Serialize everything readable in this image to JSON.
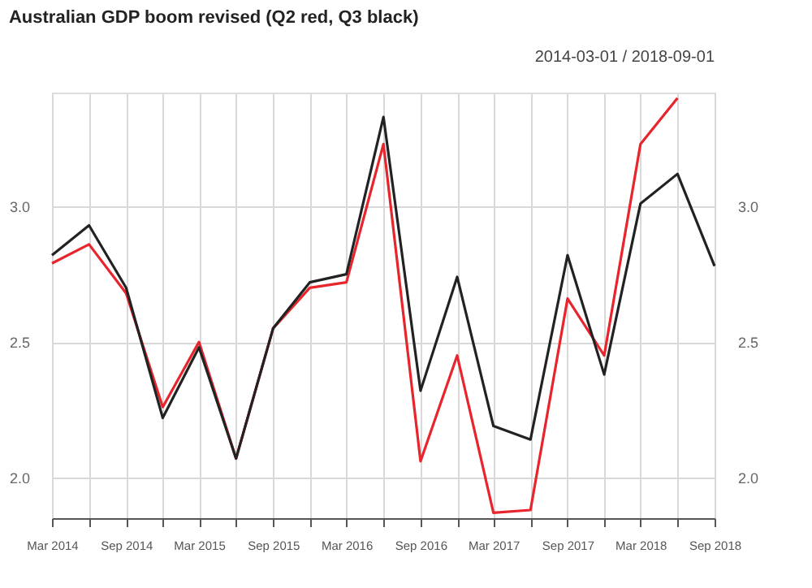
{
  "chart_data": {
    "type": "line",
    "title": "Australian GDP boom revised (Q2 red, Q3 black)",
    "subtitle": "2014-03-01 / 2018-09-01",
    "x": [
      "2014-03",
      "2014-06",
      "2014-09",
      "2014-12",
      "2015-03",
      "2015-06",
      "2015-09",
      "2015-12",
      "2016-03",
      "2016-06",
      "2016-09",
      "2016-12",
      "2017-03",
      "2017-06",
      "2017-09",
      "2017-12",
      "2018-03",
      "2018-06",
      "2018-09"
    ],
    "series": [
      {
        "color": "#e8242c",
        "values": [
          2.79,
          2.86,
          2.68,
          2.26,
          2.5,
          2.07,
          2.55,
          2.7,
          2.72,
          3.23,
          2.06,
          2.45,
          1.87,
          1.88,
          2.66,
          2.45,
          3.23,
          3.4,
          null
        ]
      },
      {
        "color": "#222222",
        "values": [
          2.82,
          2.93,
          2.7,
          2.22,
          2.48,
          2.07,
          2.55,
          2.72,
          2.75,
          3.33,
          2.32,
          2.74,
          2.19,
          2.14,
          2.82,
          2.38,
          3.01,
          3.12,
          2.78
        ]
      }
    ],
    "xlim": [
      "2014-03",
      "2018-09"
    ],
    "xticks": [
      {
        "value": "2014-03",
        "label": "Mar 2014"
      },
      {
        "value": "2014-06",
        "label": null
      },
      {
        "value": "2014-09",
        "label": "Sep 2014"
      },
      {
        "value": "2014-12",
        "label": null
      },
      {
        "value": "2015-03",
        "label": "Mar 2015"
      },
      {
        "value": "2015-06",
        "label": null
      },
      {
        "value": "2015-09",
        "label": "Sep 2015"
      },
      {
        "value": "2015-12",
        "label": null
      },
      {
        "value": "2016-03",
        "label": "Mar 2016"
      },
      {
        "value": "2016-06",
        "label": null
      },
      {
        "value": "2016-09",
        "label": "Sep 2016"
      },
      {
        "value": "2016-12",
        "label": null
      },
      {
        "value": "2017-03",
        "label": "Mar 2017"
      },
      {
        "value": "2017-06",
        "label": null
      },
      {
        "value": "2017-09",
        "label": "Sep 2017"
      },
      {
        "value": "2017-12",
        "label": null
      },
      {
        "value": "2018-03",
        "label": "Mar 2018"
      },
      {
        "value": "2018-06",
        "label": null
      },
      {
        "value": "2018-09",
        "label": "Sep 2018"
      }
    ],
    "ylim": [
      1.85,
      3.42
    ],
    "yticks": [
      {
        "value": 2.0,
        "label": "2.0"
      },
      {
        "value": 2.5,
        "label": "2.5"
      },
      {
        "value": 3.0,
        "label": "3.0"
      }
    ],
    "y2lim": [
      1.85,
      3.42
    ],
    "y2ticks": [
      {
        "value": 2.0,
        "label": "2.0"
      },
      {
        "value": 2.5,
        "label": "2.5"
      },
      {
        "value": 3.0,
        "label": "3.0"
      }
    ],
    "grid": true,
    "legend": false,
    "marker": "none",
    "line_style": "solid"
  }
}
